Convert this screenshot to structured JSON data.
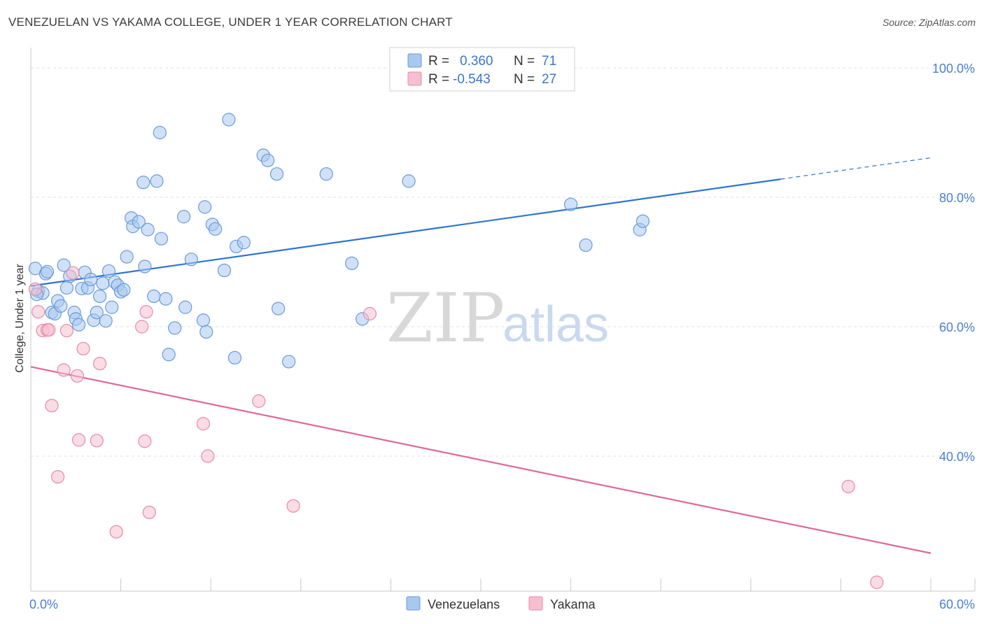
{
  "title": "VENEZUELAN VS YAKAMA COLLEGE, UNDER 1 YEAR CORRELATION CHART",
  "source": "Source: ZipAtlas.com",
  "watermark": {
    "zip": "ZIP",
    "atlas": "atlas"
  },
  "colors": {
    "blue_fill": "#a9c8f0",
    "blue_stroke": "#6a9ad8",
    "blue_line": "#2f74d0",
    "pink_fill": "#f6bfd0",
    "pink_stroke": "#e58aa8",
    "pink_line": "#e0679a",
    "grid": "#e0e0e0"
  },
  "legend": {
    "rows": [
      {
        "r_label": "R =",
        "r_value": "0.360",
        "n_label": "N =",
        "n_value": "71"
      },
      {
        "r_label": "R =",
        "r_value": "-0.543",
        "n_label": "N =",
        "n_value": "27"
      }
    ]
  },
  "bottom_legend": [
    "Venezuelans",
    "Yakama"
  ],
  "chart_data": {
    "type": "scatter",
    "xlabel": "",
    "ylabel": "College, Under 1 year",
    "xlim": [
      0,
      60
    ],
    "ylim": [
      20,
      100
    ],
    "x_tick_labels": [
      "0.0%",
      "60.0%"
    ],
    "y_tick_labels": [
      "100.0%",
      "80.0%",
      "60.0%",
      "40.0%"
    ],
    "y_ticks": [
      100,
      80,
      60,
      40
    ],
    "series": [
      {
        "name": "Venezuelans",
        "r": 0.36,
        "n": 71,
        "trend": {
          "x0": 0,
          "y0": 66.3,
          "x1": 50,
          "y1": 82.8,
          "dash_to_x": 60,
          "dash_to_y": 86.1
        },
        "points": [
          [
            0.3,
            69
          ],
          [
            0.5,
            65.5
          ],
          [
            0.8,
            65.2
          ],
          [
            1.0,
            68.2
          ],
          [
            1.1,
            68.5
          ],
          [
            1.4,
            62.2
          ],
          [
            1.6,
            62.0
          ],
          [
            1.8,
            64.0
          ],
          [
            2.0,
            63.2
          ],
          [
            2.2,
            69.5
          ],
          [
            2.4,
            66.0
          ],
          [
            2.6,
            67.8
          ],
          [
            2.9,
            62.2
          ],
          [
            3.0,
            61.2
          ],
          [
            3.2,
            60.3
          ],
          [
            3.4,
            65.9
          ],
          [
            3.6,
            68.4
          ],
          [
            3.8,
            66.0
          ],
          [
            4.0,
            67.3
          ],
          [
            4.2,
            61.0
          ],
          [
            4.4,
            62.2
          ],
          [
            4.6,
            64.7
          ],
          [
            4.8,
            66.7
          ],
          [
            5.0,
            60.9
          ],
          [
            5.2,
            68.6
          ],
          [
            5.4,
            63.0
          ],
          [
            5.6,
            66.9
          ],
          [
            5.8,
            66.4
          ],
          [
            6.0,
            65.4
          ],
          [
            6.2,
            65.7
          ],
          [
            6.4,
            70.8
          ],
          [
            6.7,
            76.8
          ],
          [
            6.8,
            75.5
          ],
          [
            7.2,
            76.2
          ],
          [
            7.5,
            82.3
          ],
          [
            7.6,
            69.3
          ],
          [
            7.8,
            75.0
          ],
          [
            8.2,
            64.7
          ],
          [
            8.4,
            82.5
          ],
          [
            8.6,
            90.0
          ],
          [
            8.7,
            73.6
          ],
          [
            9.0,
            64.3
          ],
          [
            9.2,
            55.7
          ],
          [
            9.6,
            59.8
          ],
          [
            10.2,
            77.0
          ],
          [
            10.3,
            63.0
          ],
          [
            10.7,
            70.4
          ],
          [
            11.5,
            61.0
          ],
          [
            11.6,
            78.5
          ],
          [
            11.7,
            59.2
          ],
          [
            12.1,
            75.8
          ],
          [
            12.3,
            75.1
          ],
          [
            12.9,
            68.7
          ],
          [
            13.2,
            92.0
          ],
          [
            13.6,
            55.2
          ],
          [
            13.7,
            72.4
          ],
          [
            14.2,
            73.0
          ],
          [
            15.5,
            86.5
          ],
          [
            15.8,
            85.7
          ],
          [
            16.4,
            83.6
          ],
          [
            16.5,
            62.8
          ],
          [
            17.2,
            54.6
          ],
          [
            19.7,
            83.6
          ],
          [
            21.4,
            69.8
          ],
          [
            22.1,
            61.2
          ],
          [
            25.2,
            82.5
          ],
          [
            36.0,
            78.9
          ],
          [
            37.0,
            72.6
          ],
          [
            40.6,
            75.0
          ],
          [
            40.8,
            76.3
          ],
          [
            0.4,
            65.0
          ]
        ]
      },
      {
        "name": "Yakama",
        "r": -0.543,
        "n": 27,
        "trend": {
          "x0": 0,
          "y0": 53.8,
          "x1": 60,
          "y1": 25.0
        },
        "points": [
          [
            0.5,
            62.3
          ],
          [
            0.8,
            59.4
          ],
          [
            1.1,
            59.5
          ],
          [
            1.2,
            59.5
          ],
          [
            1.4,
            47.8
          ],
          [
            1.8,
            36.8
          ],
          [
            2.2,
            53.3
          ],
          [
            2.4,
            59.4
          ],
          [
            2.8,
            68.3
          ],
          [
            3.1,
            52.4
          ],
          [
            3.2,
            42.5
          ],
          [
            3.5,
            56.6
          ],
          [
            4.4,
            42.4
          ],
          [
            4.6,
            54.3
          ],
          [
            5.7,
            28.3
          ],
          [
            7.4,
            60.0
          ],
          [
            7.6,
            42.3
          ],
          [
            7.7,
            62.3
          ],
          [
            7.9,
            31.3
          ],
          [
            11.5,
            45.0
          ],
          [
            11.8,
            40.0
          ],
          [
            15.2,
            48.5
          ],
          [
            17.5,
            32.3
          ],
          [
            22.6,
            62.0
          ],
          [
            54.5,
            35.3
          ],
          [
            56.4,
            20.5
          ],
          [
            0.3,
            65.8
          ]
        ]
      }
    ]
  }
}
